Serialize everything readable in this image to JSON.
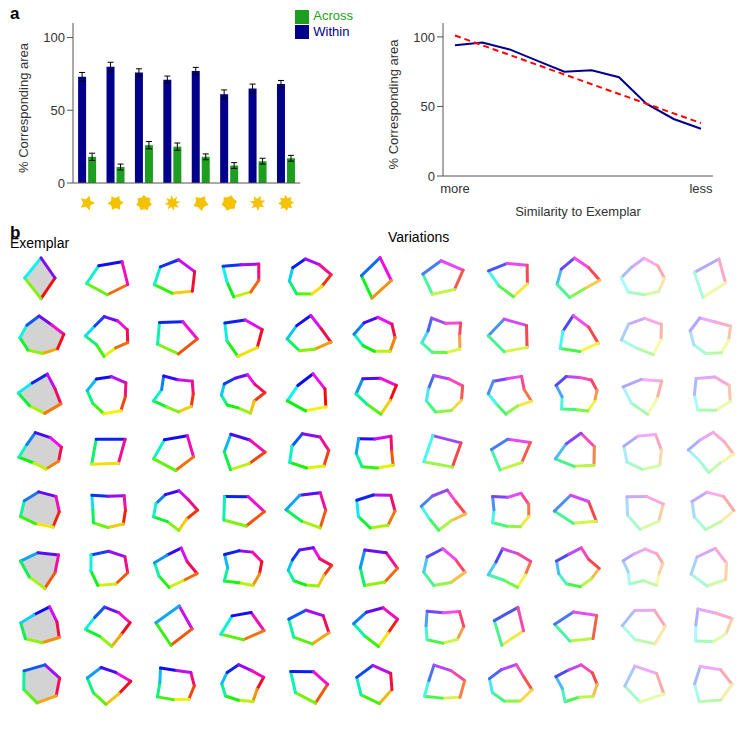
{
  "chart_data": [
    {
      "type": "bar",
      "ylabel": "% Corresponding area",
      "categories": [
        null,
        null,
        null,
        null,
        null,
        null,
        null,
        null
      ],
      "series": [
        {
          "name": "Within",
          "color": "#00008b",
          "values": [
            73,
            80,
            76,
            71,
            77,
            61,
            65,
            68
          ],
          "errors": [
            3,
            3,
            2.5,
            2.5,
            2.5,
            3,
            3,
            2.5
          ]
        },
        {
          "name": "Across",
          "color": "#1e9e1e",
          "values": [
            18,
            11,
            26,
            25,
            18,
            12,
            15,
            17
          ],
          "errors": [
            2.5,
            2,
            2.5,
            2.5,
            2,
            2,
            2,
            2
          ]
        }
      ],
      "ylim": [
        0,
        110
      ],
      "yticks": [
        0,
        50,
        100
      ],
      "legend": "upper right"
    },
    {
      "type": "line",
      "ylabel": "% Corresponding area",
      "xlabel": "Similarity to Exemplar",
      "categories": [
        "more",
        null,
        null,
        null,
        null,
        null,
        null,
        null,
        null,
        "less"
      ],
      "series": [
        {
          "color": "#00008b",
          "values": [
            94,
            96,
            91,
            83,
            75,
            76,
            71,
            52,
            41,
            34
          ],
          "line_style": "solid"
        },
        {
          "color": "#ff0000",
          "values": [
            101,
            94,
            87,
            80,
            73,
            66,
            59,
            52,
            45,
            38
          ],
          "line_style": "dashed"
        }
      ],
      "ylim": [
        0,
        110
      ],
      "yticks": [
        0,
        50,
        100
      ]
    }
  ],
  "panel_labels": [
    "a",
    "b"
  ],
  "panel_b": {
    "left_label": "Exemplar",
    "center_label": "Variations"
  }
}
